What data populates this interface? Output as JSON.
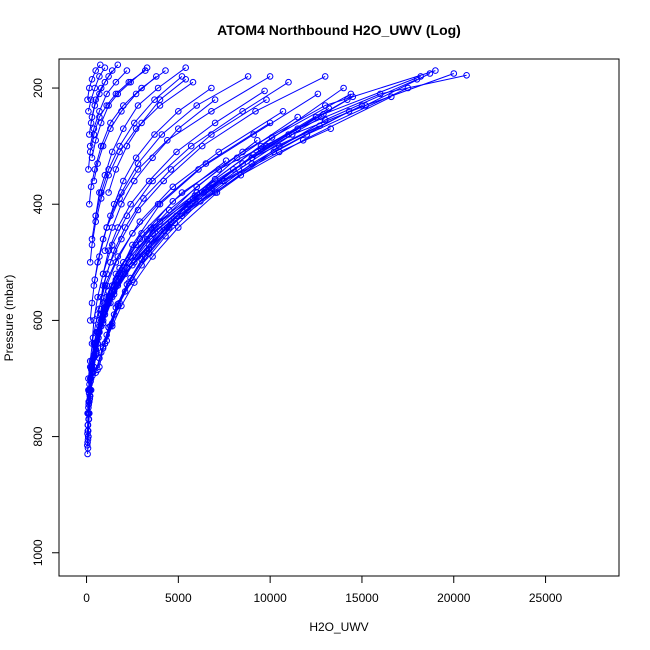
{
  "chart_data": {
    "type": "scatter",
    "title": "ATOM4 Northbound H2O_UWV (Log)",
    "xlabel": "H2O_UWV",
    "ylabel": "Pressure (mbar)",
    "xlim": [
      -1500,
      29000
    ],
    "ylim": [
      1040,
      150
    ],
    "y_axis_reversed": true,
    "grid": false,
    "legend": "none",
    "x_ticks": [
      0,
      5000,
      10000,
      15000,
      20000,
      25000
    ],
    "x_tick_labels": [
      "0",
      "5000",
      "10000",
      "15000",
      "20000",
      "25000"
    ],
    "y_ticks": [
      200,
      400,
      600,
      800,
      1000
    ],
    "y_tick_labels": [
      "200",
      "400",
      "600",
      "800",
      "1000"
    ],
    "series_color": "#0000ff",
    "series": [
      {
        "x": [
          80,
          90,
          100,
          150,
          300,
          500,
          800,
          1200,
          2000,
          3500,
          6000,
          9500,
          14000
        ],
        "y": [
          820,
          790,
          760,
          720,
          680,
          640,
          600,
          550,
          500,
          440,
          380,
          300,
          200
        ]
      },
      {
        "x": [
          60,
          80,
          120,
          200,
          400,
          700,
          1100,
          1800,
          3000,
          5200,
          8500,
          13000,
          19000
        ],
        "y": [
          810,
          780,
          740,
          700,
          660,
          610,
          560,
          510,
          450,
          380,
          310,
          230,
          170
        ]
      },
      {
        "x": [
          100,
          130,
          200,
          350,
          600,
          1000,
          1700,
          2800,
          4600,
          7400,
          12000,
          17500
        ],
        "y": [
          800,
          770,
          730,
          690,
          640,
          590,
          540,
          490,
          430,
          360,
          280,
          200
        ]
      },
      {
        "x": [
          70,
          100,
          160,
          300,
          550,
          950,
          1600,
          2700,
          4500,
          7200,
          11500,
          16000,
          20700
        ],
        "y": [
          790,
          750,
          710,
          670,
          620,
          570,
          520,
          470,
          410,
          340,
          270,
          210,
          178
        ]
      },
      {
        "x": [
          120,
          180,
          300,
          500,
          900,
          1500,
          2600,
          4400,
          7000,
          10500,
          15000
        ],
        "y": [
          770,
          730,
          690,
          650,
          600,
          550,
          500,
          440,
          380,
          300,
          230
        ]
      },
      {
        "x": [
          90,
          140,
          250,
          450,
          800,
          1400,
          2400,
          4000,
          6700,
          9000,
          12700
        ],
        "y": [
          760,
          720,
          680,
          640,
          590,
          540,
          490,
          430,
          370,
          320,
          265
        ]
      },
      {
        "x": [
          150,
          250,
          400,
          700,
          1200,
          2000,
          3300,
          5500,
          8000,
          11000,
          14500
        ],
        "y": [
          740,
          700,
          660,
          620,
          570,
          520,
          460,
          400,
          340,
          280,
          215
        ]
      },
      {
        "x": [
          60,
          100,
          200,
          400,
          700,
          1200,
          2000,
          3300,
          5200,
          7500,
          10500,
          13300
        ],
        "y": [
          760,
          720,
          680,
          640,
          600,
          560,
          520,
          480,
          420,
          360,
          310,
          270
        ]
      },
      {
        "x": [
          200,
          300,
          500,
          800,
          1300,
          2200,
          3600,
          5800,
          8500,
          12500
        ],
        "y": [
          720,
          690,
          650,
          610,
          560,
          510,
          450,
          390,
          330,
          250
        ]
      },
      {
        "x": [
          100,
          200,
          350,
          600,
          1000,
          1700,
          2900,
          4700,
          7200,
          10700
        ],
        "y": [
          700,
          670,
          630,
          590,
          540,
          490,
          430,
          370,
          310,
          240
        ]
      },
      {
        "x": [
          300,
          500,
          800,
          1300,
          2100,
          3400,
          5500,
          8400,
          11800,
          16600
        ],
        "y": [
          690,
          650,
          610,
          570,
          520,
          470,
          410,
          350,
          290,
          215
        ]
      },
      {
        "x": [
          400,
          600,
          900,
          1400,
          2200,
          3500,
          5600,
          8300,
          11200,
          15200,
          18700
        ],
        "y": [
          680,
          640,
          600,
          560,
          510,
          460,
          400,
          340,
          280,
          230,
          175
        ]
      },
      {
        "x": [
          500,
          700,
          1000,
          1500,
          2400,
          3800,
          6000,
          9000,
          12800
        ],
        "y": [
          660,
          620,
          580,
          540,
          490,
          440,
          380,
          320,
          250
        ]
      },
      {
        "x": [
          300,
          400,
          600,
          900,
          1400,
          2200,
          3600,
          5700,
          8500,
          11000
        ],
        "y": [
          640,
          600,
          560,
          520,
          470,
          420,
          360,
          300,
          240,
          190
        ]
      },
      {
        "x": [
          600,
          800,
          1100,
          1600,
          2500,
          3900,
          6100,
          9100,
          12600
        ],
        "y": [
          620,
          580,
          540,
          500,
          450,
          400,
          340,
          280,
          210
        ]
      },
      {
        "x": [
          200,
          300,
          450,
          700,
          1100,
          1800,
          2800,
          4400,
          6800,
          10000
        ],
        "y": [
          600,
          570,
          530,
          490,
          440,
          390,
          340,
          290,
          240,
          180
        ]
      },
      {
        "x": [
          700,
          900,
          1300,
          1900,
          2800,
          4200,
          6300,
          9200,
          13000
        ],
        "y": [
          580,
          540,
          500,
          460,
          410,
          360,
          300,
          240,
          180
        ]
      },
      {
        "x": [
          800,
          1100,
          1500,
          2100,
          3100,
          4600,
          6800,
          9800
        ],
        "y": [
          560,
          520,
          480,
          440,
          390,
          340,
          280,
          220
        ]
      },
      {
        "x": [
          400,
          600,
          900,
          1300,
          1900,
          2800,
          4100,
          6000,
          8800
        ],
        "y": [
          540,
          500,
          460,
          420,
          380,
          330,
          280,
          230,
          180
        ]
      },
      {
        "x": [
          900,
          1200,
          1700,
          2400,
          3400,
          4900,
          7000,
          9700
        ],
        "y": [
          520,
          480,
          440,
          400,
          360,
          310,
          260,
          205
        ]
      },
      {
        "x": [
          200,
          300,
          500,
          800,
          1200,
          1800,
          2700,
          4000,
          5800
        ],
        "y": [
          500,
          470,
          430,
          390,
          350,
          310,
          270,
          230,
          190
        ]
      },
      {
        "x": [
          1000,
          1400,
          1900,
          2600,
          3600,
          5000,
          7000
        ],
        "y": [
          480,
          440,
          400,
          360,
          320,
          270,
          220
        ]
      },
      {
        "x": [
          300,
          500,
          800,
          1200,
          1800,
          2600,
          3700,
          5200
        ],
        "y": [
          460,
          420,
          380,
          340,
          300,
          260,
          220,
          180
        ]
      },
      {
        "x": [
          1100,
          1500,
          2000,
          2700,
          3700,
          5000,
          6800
        ],
        "y": [
          440,
          400,
          360,
          320,
          280,
          240,
          200
        ]
      },
      {
        "x": [
          500,
          700,
          1000,
          1400,
          2000,
          2800,
          3900,
          5400
        ],
        "y": [
          420,
          380,
          350,
          310,
          270,
          230,
          200,
          165
        ]
      },
      {
        "x": [
          150,
          250,
          450,
          800,
          1300,
          2000,
          3000,
          4300
        ],
        "y": [
          400,
          370,
          340,
          300,
          260,
          230,
          200,
          170
        ]
      },
      {
        "x": [
          1200,
          1600,
          2200,
          3000,
          4000,
          5400
        ],
        "y": [
          380,
          340,
          300,
          260,
          220,
          185
        ]
      },
      {
        "x": [
          400,
          600,
          900,
          1300,
          1900,
          2700,
          3800
        ],
        "y": [
          360,
          330,
          300,
          270,
          240,
          210,
          180
        ]
      },
      {
        "x": [
          100,
          200,
          400,
          700,
          1100,
          1600,
          2300,
          3200
        ],
        "y": [
          340,
          310,
          280,
          250,
          230,
          210,
          190,
          170
        ]
      },
      {
        "x": [
          300,
          500,
          800,
          1200,
          1700,
          2400,
          3300
        ],
        "y": [
          320,
          290,
          260,
          230,
          210,
          190,
          165
        ]
      },
      {
        "x": [
          200,
          400,
          700,
          1100,
          1600,
          2200
        ],
        "y": [
          300,
          270,
          240,
          210,
          190,
          170
        ]
      },
      {
        "x": [
          150,
          300,
          500,
          800,
          1200,
          1700
        ],
        "y": [
          280,
          250,
          220,
          200,
          180,
          160
        ]
      },
      {
        "x": [
          250,
          450,
          700,
          1000,
          1400
        ],
        "y": [
          260,
          230,
          210,
          190,
          170
        ]
      },
      {
        "x": [
          100,
          250,
          450,
          700,
          1000
        ],
        "y": [
          240,
          220,
          200,
          180,
          165
        ]
      },
      {
        "x": [
          50,
          150,
          300,
          500,
          750
        ],
        "y": [
          220,
          200,
          185,
          170,
          160
        ]
      },
      {
        "x": [
          60,
          90,
          150,
          250,
          400,
          650,
          1000,
          1600,
          2500,
          4000,
          6500,
          10000
        ],
        "y": [
          830,
          800,
          760,
          720,
          680,
          630,
          580,
          530,
          470,
          400,
          330,
          260
        ]
      },
      {
        "x": [
          40,
          70,
          120,
          220,
          380,
          650,
          1100,
          1800,
          2900,
          4700,
          7600
        ],
        "y": [
          815,
          780,
          745,
          705,
          665,
          620,
          570,
          520,
          460,
          395,
          325
        ]
      },
      {
        "x": [
          80,
          110,
          180,
          320,
          550,
          900,
          1500,
          2500,
          4000,
          6500,
          9800,
          14200
        ],
        "y": [
          805,
          770,
          735,
          695,
          655,
          605,
          555,
          505,
          445,
          375,
          300,
          220
        ]
      },
      {
        "x": [
          50,
          80,
          140,
          260,
          470,
          820,
          1400,
          2300,
          3700,
          6000,
          9300
        ],
        "y": [
          795,
          760,
          725,
          685,
          645,
          600,
          550,
          500,
          440,
          370,
          290
        ]
      },
      {
        "x": [
          500,
          700,
          1000,
          1400,
          1900,
          2600,
          3600,
          5000,
          7100,
          10200,
          14300,
          20000
        ],
        "y": [
          690,
          665,
          640,
          610,
          575,
          535,
          490,
          440,
          380,
          310,
          240,
          175
        ]
      },
      {
        "x": [
          600,
          800,
          1100,
          1500,
          2100,
          3000,
          4300,
          6200,
          9000,
          13000,
          18000
        ],
        "y": [
          685,
          655,
          625,
          590,
          550,
          505,
          455,
          395,
          330,
          255,
          185
        ]
      },
      {
        "x": [
          700,
          900,
          1200,
          1700,
          2400,
          3400,
          4900,
          7000,
          10100,
          14400
        ],
        "y": [
          680,
          648,
          612,
          572,
          527,
          477,
          420,
          357,
          285,
          210
        ]
      },
      {
        "x": [
          1000,
          1300,
          1700,
          2300,
          3200,
          4500,
          6400,
          9100,
          12900,
          18200
        ],
        "y": [
          640,
          610,
          575,
          535,
          490,
          440,
          380,
          315,
          245,
          180
        ]
      },
      {
        "x": [
          1100,
          1400,
          1800,
          2500,
          3400,
          4800,
          6800,
          9500,
          13200
        ],
        "y": [
          635,
          605,
          570,
          530,
          485,
          432,
          372,
          305,
          235
        ]
      },
      {
        "x": [
          900,
          1200,
          1600,
          2200,
          3000,
          4200,
          5900,
          8200,
          11500
        ],
        "y": [
          645,
          612,
          578,
          538,
          495,
          445,
          385,
          320,
          250
        ]
      }
    ]
  }
}
